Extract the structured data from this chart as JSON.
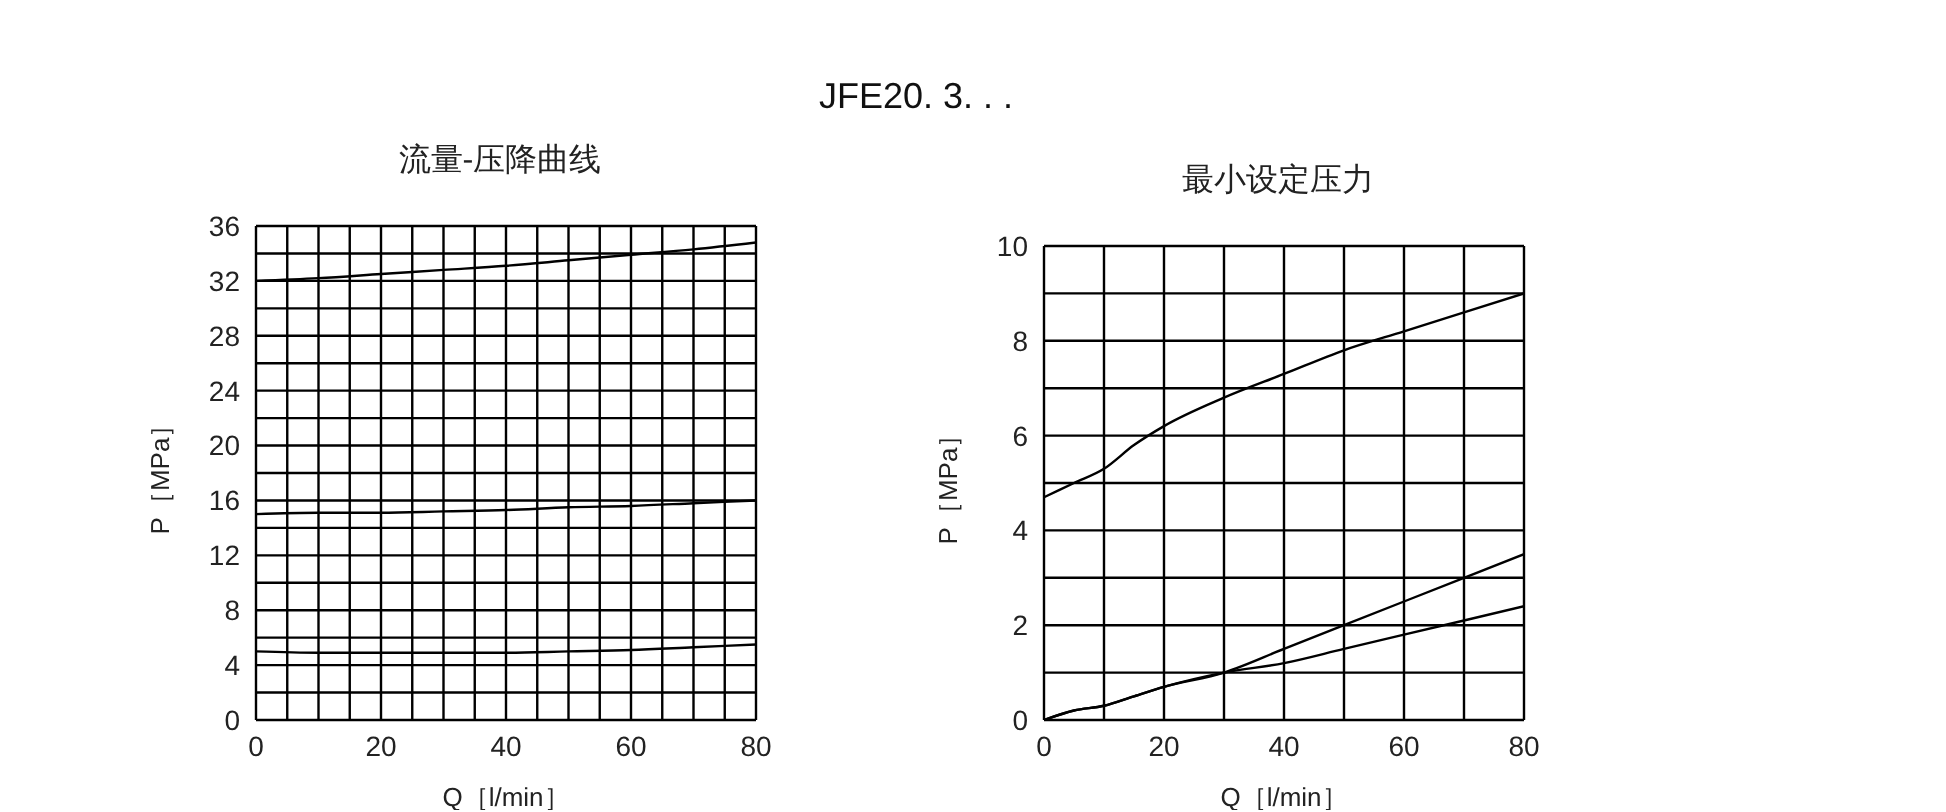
{
  "chart_data": [
    {
      "type": "line",
      "annotations": [
        "JFE20. 3. . ."
      ],
      "title": "流量-压降曲线",
      "xlabel": "Q［l/min］",
      "ylabel": "P［MPa］",
      "x": [
        0,
        10,
        20,
        30,
        40,
        50,
        60,
        70,
        80
      ],
      "xlim": [
        0,
        80
      ],
      "ylim": [
        0,
        36
      ],
      "grid": true,
      "marker": "none",
      "xticks": [
        0,
        {
          "value": 5,
          "label": null
        },
        {
          "value": 10,
          "label": null
        },
        {
          "value": 15,
          "label": null
        },
        20,
        {
          "value": 25,
          "label": null
        },
        {
          "value": 30,
          "label": null
        },
        {
          "value": 35,
          "label": null
        },
        40,
        {
          "value": 45,
          "label": null
        },
        {
          "value": 50,
          "label": null
        },
        {
          "value": 55,
          "label": null
        },
        60,
        {
          "value": 65,
          "label": null
        },
        {
          "value": 70,
          "label": null
        },
        {
          "value": 75,
          "label": null
        },
        80
      ],
      "yticks": [
        0,
        {
          "value": 2,
          "label": null
        },
        4,
        {
          "value": 6,
          "label": null
        },
        8,
        {
          "value": 10,
          "label": null
        },
        12,
        {
          "value": 14,
          "label": null
        },
        16,
        {
          "value": 18,
          "label": null
        },
        20,
        {
          "value": 22,
          "label": null
        },
        24,
        {
          "value": 26,
          "label": null
        },
        28,
        {
          "value": 30,
          "label": null
        },
        32,
        {
          "value": 34,
          "label": null
        },
        36
      ],
      "series": [
        {
          "color": "#000000",
          "values": [
            32,
            32.2,
            32.5,
            32.8,
            33.1,
            33.5,
            33.9,
            34.3,
            34.8
          ]
        },
        {
          "color": "#000000",
          "values": [
            15,
            15.1,
            15.1,
            15.2,
            15.3,
            15.5,
            15.6,
            15.8,
            16
          ]
        },
        {
          "color": "#000000",
          "values": [
            5,
            4.9,
            4.9,
            4.9,
            4.9,
            5,
            5.1,
            5.3,
            5.5
          ]
        }
      ]
    },
    {
      "type": "line",
      "title": "最小设定压力",
      "xlabel": "Q［l/min］",
      "ylabel": "P［MPa］",
      "x": [
        0,
        5,
        10,
        15,
        20,
        30,
        40,
        50,
        60,
        70,
        80
      ],
      "xlim": [
        0,
        80
      ],
      "ylim": [
        0,
        10
      ],
      "grid": true,
      "marker": "none",
      "xticks": [
        0,
        {
          "value": 10,
          "label": null
        },
        20,
        {
          "value": 30,
          "label": null
        },
        40,
        {
          "value": 50,
          "label": null
        },
        60,
        {
          "value": 70,
          "label": null
        },
        80
      ],
      "yticks": [
        0,
        {
          "value": 1,
          "label": null
        },
        2,
        {
          "value": 3,
          "label": null
        },
        4,
        {
          "value": 5,
          "label": null
        },
        6,
        {
          "value": 7,
          "label": null
        },
        8,
        {
          "value": 9,
          "label": null
        },
        10
      ],
      "series": [
        {
          "color": "#000000",
          "values": [
            4.7,
            5,
            5.3,
            5.8,
            6.2,
            6.8,
            7.3,
            7.8,
            8.2,
            8.6,
            9
          ]
        },
        {
          "color": "#000000",
          "values": [
            0,
            0.2,
            0.3,
            0.5,
            0.7,
            1,
            1.5,
            2,
            2.5,
            3,
            3.5
          ]
        },
        {
          "color": "#000000",
          "values": [
            0,
            0.2,
            0.3,
            0.5,
            0.7,
            1,
            1.2,
            1.5,
            1.8,
            2.1,
            2.4
          ]
        }
      ]
    }
  ]
}
